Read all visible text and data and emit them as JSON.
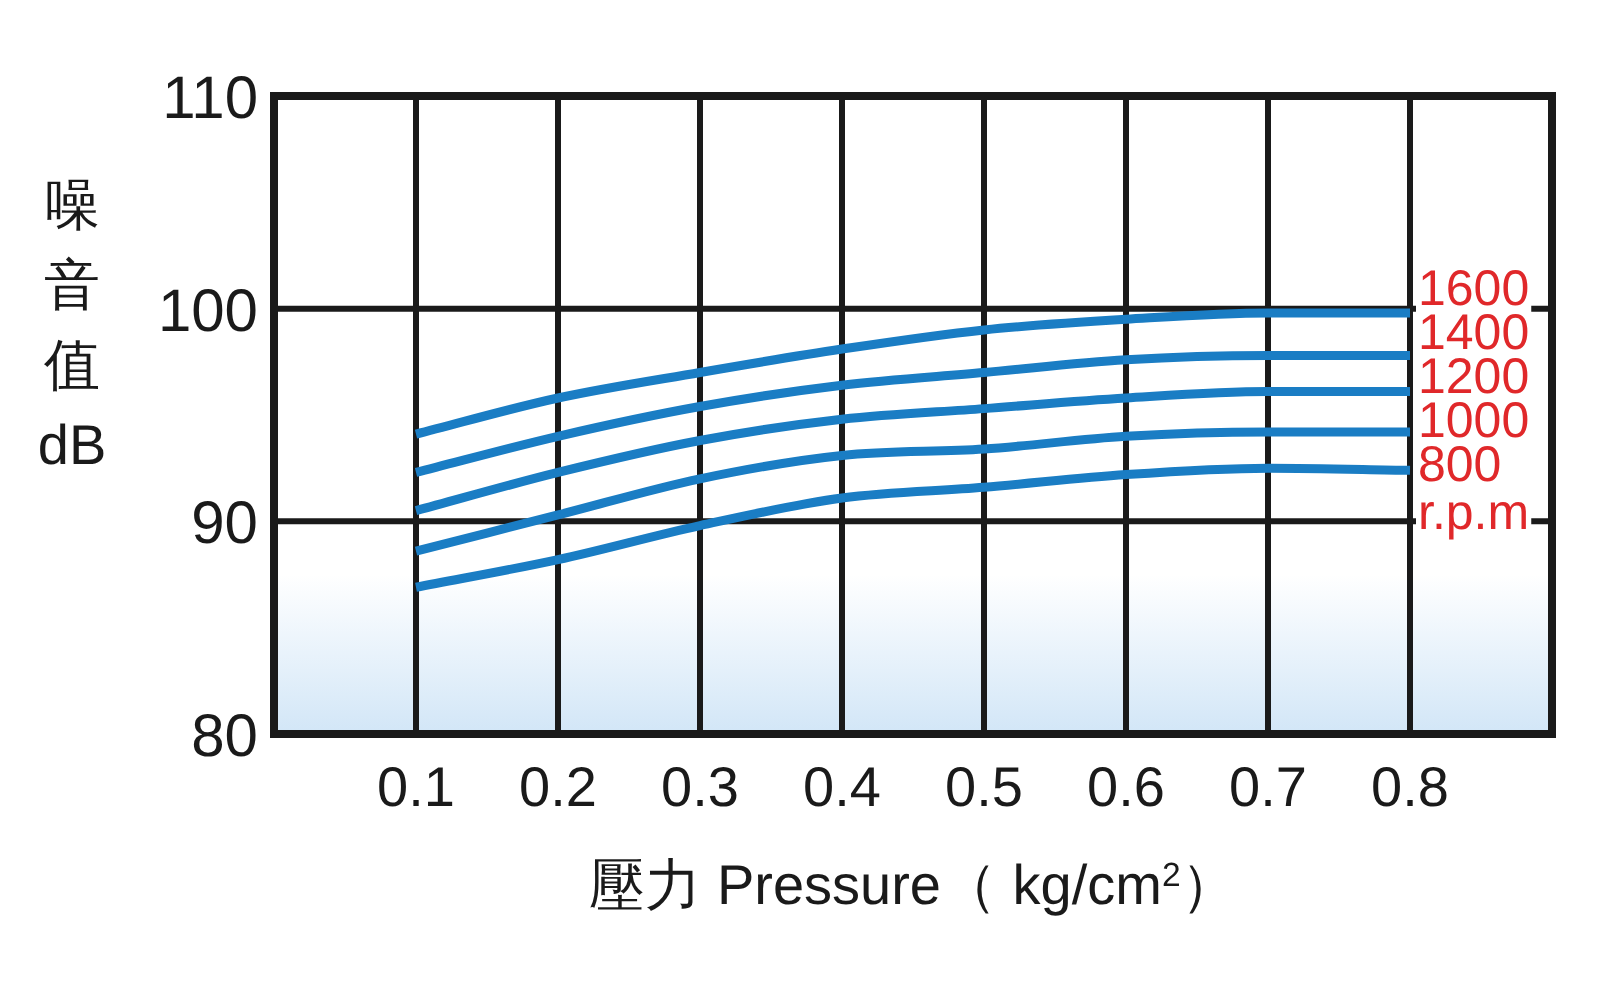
{
  "chart_data": {
    "type": "line",
    "xlabel": "壓力 Pressure（ kg/cm$^{2}$）",
    "ylabel": "噪音值 dB",
    "legend_title": "r.p.m",
    "x": [
      0.1,
      0.2,
      0.3,
      0.4,
      0.5,
      0.6,
      0.7,
      0.8
    ],
    "series": [
      {
        "name": "1600",
        "color": "#1a7dc4",
        "values": [
          94.1,
          95.8,
          97.0,
          98.1,
          99.0,
          99.5,
          99.8,
          99.8
        ]
      },
      {
        "name": "1400",
        "color": "#1a7dc4",
        "values": [
          92.3,
          94.0,
          95.4,
          96.4,
          97.0,
          97.6,
          97.8,
          97.8
        ]
      },
      {
        "name": "1200",
        "color": "#1a7dc4",
        "values": [
          90.5,
          92.3,
          93.8,
          94.8,
          95.3,
          95.8,
          96.1,
          96.1
        ]
      },
      {
        "name": "1000",
        "color": "#1a7dc4",
        "values": [
          88.6,
          90.3,
          92.0,
          93.1,
          93.4,
          94.0,
          94.2,
          94.2
        ]
      },
      {
        "name": "800",
        "color": "#1a7dc4",
        "values": [
          86.9,
          88.2,
          89.8,
          91.1,
          91.6,
          92.2,
          92.5,
          92.4
        ]
      }
    ],
    "xlim": [
      0,
      0.9
    ],
    "ylim": [
      80,
      110
    ],
    "xticks": [
      0.1,
      0.2,
      0.3,
      0.4,
      0.5,
      0.6,
      0.7,
      0.8
    ],
    "yticks": [
      80,
      90,
      100,
      110
    ],
    "grid": true,
    "marker": "none",
    "line_style": "solid"
  }
}
